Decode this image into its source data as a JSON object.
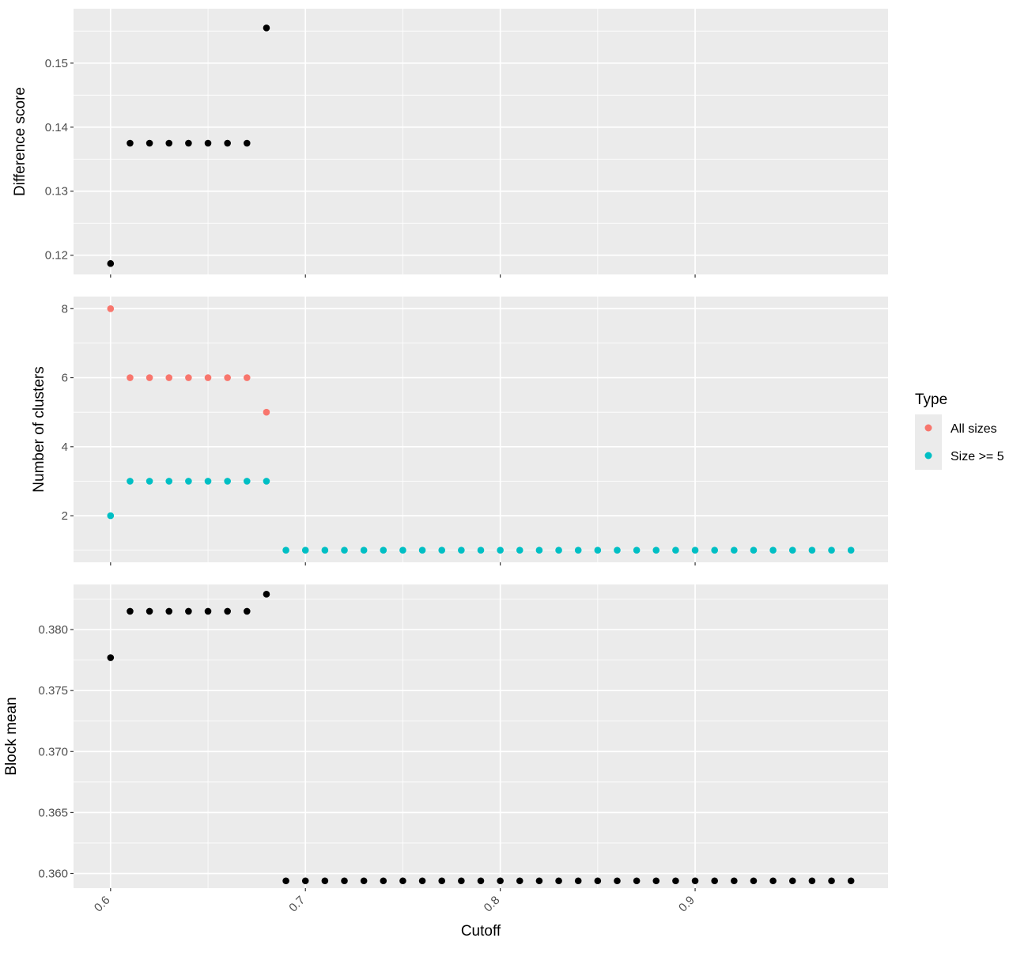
{
  "chart_data": [
    {
      "type": "scatter",
      "ylabel": "Difference score",
      "ylim": [
        0.117,
        0.1585
      ],
      "yticks": [
        0.12,
        0.13,
        0.14,
        0.15
      ],
      "ytick_labels": [
        "0.12",
        "0.13",
        "0.14",
        "0.15"
      ],
      "series": [
        {
          "color": "#000000",
          "points": [
            [
              0.6,
              0.1187
            ],
            [
              0.61,
              0.1375
            ],
            [
              0.62,
              0.1375
            ],
            [
              0.63,
              0.1375
            ],
            [
              0.64,
              0.1375
            ],
            [
              0.65,
              0.1375
            ],
            [
              0.66,
              0.1375
            ],
            [
              0.67,
              0.1375
            ],
            [
              0.68,
              0.1555
            ]
          ]
        }
      ]
    },
    {
      "type": "scatter",
      "ylabel": "Number of clusters",
      "ylim": [
        0.65,
        8.35
      ],
      "yticks": [
        2,
        4,
        6,
        8
      ],
      "ytick_labels": [
        "2",
        "4",
        "6",
        "8"
      ],
      "series": [
        {
          "name": "All sizes",
          "color": "#F8766D",
          "points": [
            [
              0.6,
              8
            ],
            [
              0.61,
              6
            ],
            [
              0.62,
              6
            ],
            [
              0.63,
              6
            ],
            [
              0.64,
              6
            ],
            [
              0.65,
              6
            ],
            [
              0.66,
              6
            ],
            [
              0.67,
              6
            ],
            [
              0.68,
              5
            ]
          ]
        },
        {
          "name": "Size >= 5",
          "color": "#00BFC4",
          "points": [
            [
              0.6,
              2
            ],
            [
              0.61,
              3
            ],
            [
              0.62,
              3
            ],
            [
              0.63,
              3
            ],
            [
              0.64,
              3
            ],
            [
              0.65,
              3
            ],
            [
              0.66,
              3
            ],
            [
              0.67,
              3
            ],
            [
              0.68,
              3
            ],
            [
              0.69,
              1
            ],
            [
              0.7,
              1
            ],
            [
              0.71,
              1
            ],
            [
              0.72,
              1
            ],
            [
              0.73,
              1
            ],
            [
              0.74,
              1
            ],
            [
              0.75,
              1
            ],
            [
              0.76,
              1
            ],
            [
              0.77,
              1
            ],
            [
              0.78,
              1
            ],
            [
              0.79,
              1
            ],
            [
              0.8,
              1
            ],
            [
              0.81,
              1
            ],
            [
              0.82,
              1
            ],
            [
              0.83,
              1
            ],
            [
              0.84,
              1
            ],
            [
              0.85,
              1
            ],
            [
              0.86,
              1
            ],
            [
              0.87,
              1
            ],
            [
              0.88,
              1
            ],
            [
              0.89,
              1
            ],
            [
              0.9,
              1
            ],
            [
              0.91,
              1
            ],
            [
              0.92,
              1
            ],
            [
              0.93,
              1
            ],
            [
              0.94,
              1
            ],
            [
              0.95,
              1
            ],
            [
              0.96,
              1
            ],
            [
              0.97,
              1
            ],
            [
              0.98,
              1
            ]
          ]
        }
      ]
    },
    {
      "type": "scatter",
      "ylabel": "Block mean",
      "ylim": [
        0.3588,
        0.3837
      ],
      "yticks": [
        0.36,
        0.365,
        0.37,
        0.375,
        0.38
      ],
      "ytick_labels": [
        "0.360",
        "0.365",
        "0.370",
        "0.375",
        "0.380"
      ],
      "series": [
        {
          "color": "#000000",
          "points": [
            [
              0.6,
              0.3777
            ],
            [
              0.61,
              0.3815
            ],
            [
              0.62,
              0.3815
            ],
            [
              0.63,
              0.3815
            ],
            [
              0.64,
              0.3815
            ],
            [
              0.65,
              0.3815
            ],
            [
              0.66,
              0.3815
            ],
            [
              0.67,
              0.3815
            ],
            [
              0.68,
              0.3829
            ],
            [
              0.69,
              0.3594
            ],
            [
              0.7,
              0.3594
            ],
            [
              0.71,
              0.3594
            ],
            [
              0.72,
              0.3594
            ],
            [
              0.73,
              0.3594
            ],
            [
              0.74,
              0.3594
            ],
            [
              0.75,
              0.3594
            ],
            [
              0.76,
              0.3594
            ],
            [
              0.77,
              0.3594
            ],
            [
              0.78,
              0.3594
            ],
            [
              0.79,
              0.3594
            ],
            [
              0.8,
              0.3594
            ],
            [
              0.81,
              0.3594
            ],
            [
              0.82,
              0.3594
            ],
            [
              0.83,
              0.3594
            ],
            [
              0.84,
              0.3594
            ],
            [
              0.85,
              0.3594
            ],
            [
              0.86,
              0.3594
            ],
            [
              0.87,
              0.3594
            ],
            [
              0.88,
              0.3594
            ],
            [
              0.89,
              0.3594
            ],
            [
              0.9,
              0.3594
            ],
            [
              0.91,
              0.3594
            ],
            [
              0.92,
              0.3594
            ],
            [
              0.93,
              0.3594
            ],
            [
              0.94,
              0.3594
            ],
            [
              0.95,
              0.3594
            ],
            [
              0.96,
              0.3594
            ],
            [
              0.97,
              0.3594
            ],
            [
              0.98,
              0.3594
            ]
          ]
        }
      ]
    }
  ],
  "x_axis": {
    "label": "Cutoff",
    "xlim": [
      0.581,
      0.999
    ],
    "ticks": [
      0.6,
      0.7,
      0.8,
      0.9
    ],
    "tick_labels": [
      "0.6",
      "0.7",
      "0.8",
      "0.9"
    ]
  },
  "legend": {
    "title": "Type",
    "position": "right",
    "items": [
      {
        "label": "All sizes",
        "color": "#F8766D"
      },
      {
        "label": "Size >= 5",
        "color": "#00BFC4"
      }
    ]
  }
}
